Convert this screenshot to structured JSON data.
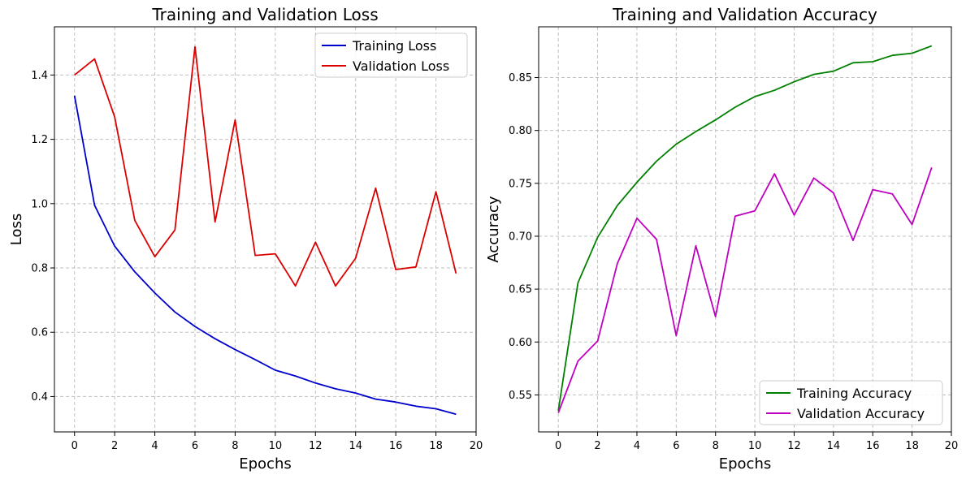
{
  "chart_data": [
    {
      "type": "line",
      "title": "Training and Validation Loss",
      "xlabel": "Epochs",
      "ylabel": "Loss",
      "xlim": [
        -1,
        20
      ],
      "ylim": [
        0.29,
        1.55
      ],
      "xticks": [
        0,
        2,
        4,
        6,
        8,
        10,
        12,
        14,
        16,
        18,
        20
      ],
      "xtick_labels": [
        "0",
        "2",
        "4",
        "6",
        "8",
        "10",
        "12",
        "14",
        "16",
        "18",
        "20"
      ],
      "yticks": [
        0.4,
        0.6,
        0.8,
        1.0,
        1.2,
        1.4
      ],
      "ytick_labels": [
        "0.4",
        "0.6",
        "0.8",
        "1.0",
        "1.2",
        "1.4"
      ],
      "grid": true,
      "legend_position": "top-right",
      "x": [
        0,
        1,
        2,
        3,
        4,
        5,
        6,
        7,
        8,
        9,
        10,
        11,
        12,
        13,
        14,
        15,
        16,
        17,
        18,
        19
      ],
      "series": [
        {
          "name": "Training Loss",
          "color": "#0000cc",
          "values": [
            1.336,
            0.995,
            0.868,
            0.788,
            0.722,
            0.663,
            0.618,
            0.58,
            0.546,
            0.515,
            0.482,
            0.464,
            0.442,
            0.424,
            0.411,
            0.392,
            0.383,
            0.37,
            0.362,
            0.345
          ]
        },
        {
          "name": "Validation Loss",
          "color": "#dd0000",
          "values": [
            1.4,
            1.45,
            1.27,
            0.948,
            0.835,
            0.918,
            1.488,
            0.943,
            1.26,
            0.839,
            0.844,
            0.744,
            0.88,
            0.744,
            0.83,
            1.048,
            0.795,
            0.803,
            1.037,
            0.783
          ]
        }
      ]
    },
    {
      "type": "line",
      "title": "Training and Validation Accuracy",
      "xlabel": "Epochs",
      "ylabel": "Accuracy",
      "xlim": [
        -1,
        20
      ],
      "ylim": [
        0.515,
        0.898
      ],
      "xticks": [
        0,
        2,
        4,
        6,
        8,
        10,
        12,
        14,
        16,
        18,
        20
      ],
      "xtick_labels": [
        "0",
        "2",
        "4",
        "6",
        "8",
        "10",
        "12",
        "14",
        "16",
        "18",
        "20"
      ],
      "yticks": [
        0.55,
        0.6,
        0.65,
        0.7,
        0.75,
        0.8,
        0.85
      ],
      "ytick_labels": [
        "0.55",
        "0.60",
        "0.65",
        "0.70",
        "0.75",
        "0.80",
        "0.85"
      ],
      "grid": true,
      "legend_position": "bottom-right",
      "x": [
        0,
        1,
        2,
        3,
        4,
        5,
        6,
        7,
        8,
        9,
        10,
        11,
        12,
        13,
        14,
        15,
        16,
        17,
        18,
        19
      ],
      "series": [
        {
          "name": "Training Accuracy",
          "color": "#008000",
          "values": [
            0.535,
            0.656,
            0.699,
            0.729,
            0.751,
            0.771,
            0.787,
            0.799,
            0.81,
            0.822,
            0.832,
            0.838,
            0.846,
            0.853,
            0.856,
            0.864,
            0.865,
            0.871,
            0.873,
            0.88
          ]
        },
        {
          "name": "Validation Accuracy",
          "color": "#bf00bf",
          "values": [
            0.533,
            0.582,
            0.601,
            0.674,
            0.717,
            0.697,
            0.606,
            0.691,
            0.624,
            0.719,
            0.724,
            0.759,
            0.72,
            0.755,
            0.741,
            0.696,
            0.744,
            0.74,
            0.711,
            0.765
          ]
        }
      ]
    }
  ]
}
